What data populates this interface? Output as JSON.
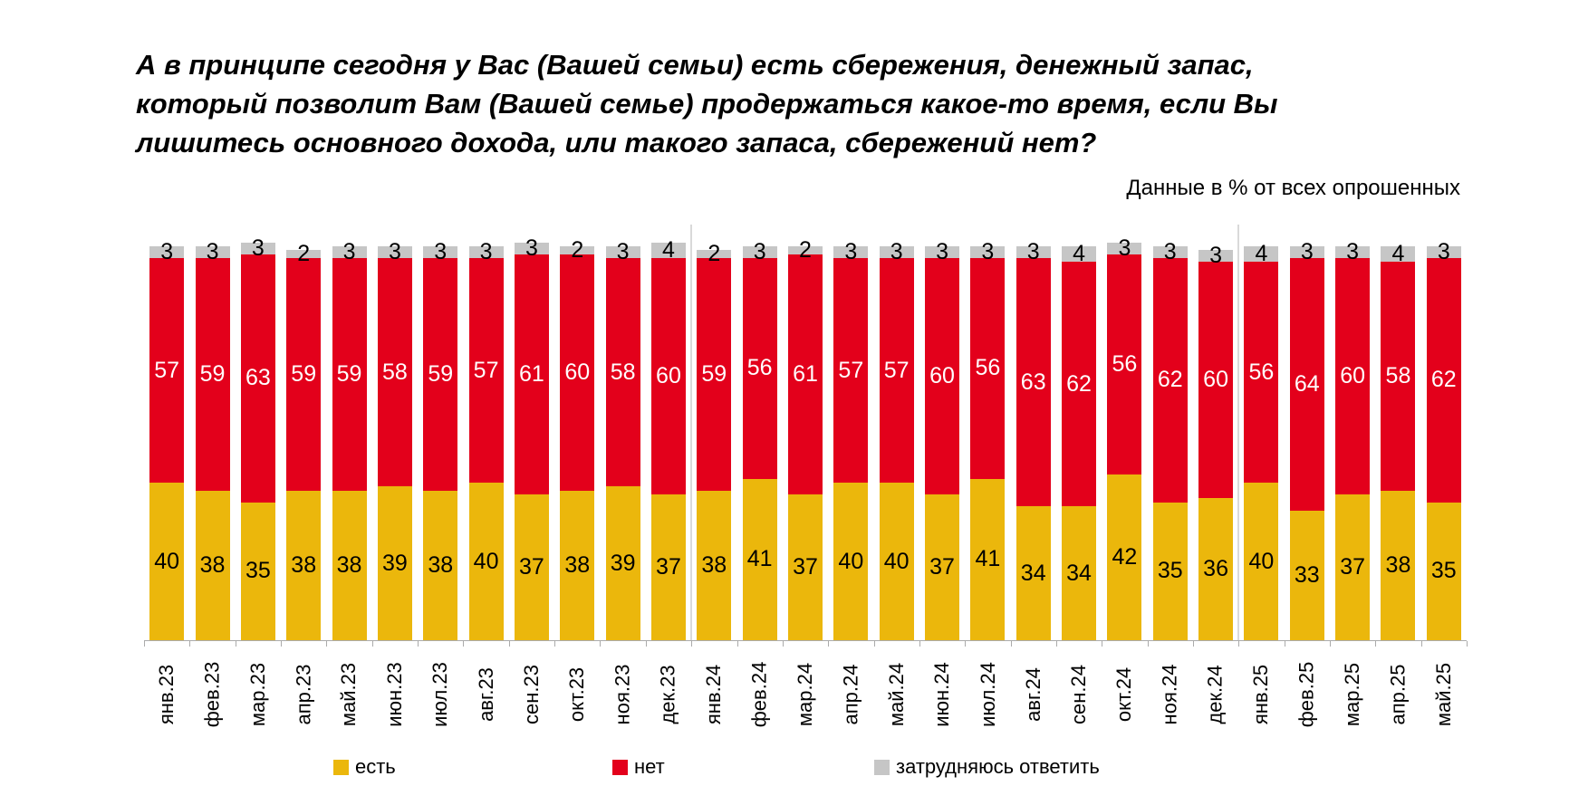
{
  "header": {
    "title": "А в принципе сегодня у Вас (Вашей семьи) есть сбережения, денежный запас,\nкоторый позволит Вам (Вашей семье) продержаться какое-то время, если Вы\nлишитесь основного дохода, или такого запаса, сбережений нет?",
    "subtitle": "Данные в % от всех опрошенных"
  },
  "chart_data": {
    "type": "bar",
    "stacked": true,
    "unit": "% от всех опрошенных",
    "title": "А в принципе сегодня у Вас (Вашей семьи) есть сбережения, денежный запас, который позволит Вам (Вашей семье) продержаться какое-то время, если Вы лишитесь основного дохода, или такого запаса, сбережений нет?",
    "categories": [
      "янв.23",
      "фев.23",
      "мар.23",
      "апр.23",
      "май.23",
      "июн.23",
      "июл.23",
      "авг.23",
      "сен.23",
      "окт.23",
      "ноя.23",
      "дек.23",
      "янв.24",
      "фев.24",
      "мар.24",
      "апр.24",
      "май.24",
      "июн.24",
      "июл.24",
      "авг.24",
      "сен.24",
      "окт.24",
      "ноя.24",
      "дек.24",
      "янв.25",
      "фев.25",
      "мар.25",
      "апр.25",
      "май.25"
    ],
    "series": [
      {
        "name": "есть",
        "color": "#ebb70c",
        "label_color": "#000000",
        "values": [
          40,
          38,
          35,
          38,
          38,
          39,
          38,
          40,
          37,
          38,
          39,
          37,
          38,
          41,
          37,
          40,
          40,
          37,
          41,
          34,
          34,
          42,
          35,
          36,
          40,
          33,
          37,
          38,
          35
        ]
      },
      {
        "name": "нет",
        "color": "#e3001b",
        "label_color": "#ffffff",
        "values": [
          57,
          59,
          63,
          59,
          59,
          58,
          59,
          57,
          61,
          60,
          58,
          60,
          59,
          56,
          61,
          57,
          57,
          60,
          56,
          63,
          62,
          56,
          62,
          60,
          56,
          64,
          60,
          58,
          62
        ]
      },
      {
        "name": "затрудняюсь ответить",
        "color": "#c6c6c6",
        "label_color": "#000000",
        "values": [
          3,
          3,
          3,
          2,
          3,
          3,
          3,
          3,
          3,
          2,
          3,
          4,
          2,
          3,
          2,
          3,
          3,
          3,
          3,
          3,
          4,
          3,
          3,
          3,
          4,
          3,
          3,
          4,
          3
        ]
      }
    ],
    "ylim": [
      0,
      100
    ],
    "value_labels": true,
    "grid": false,
    "legend_position": "bottom",
    "year_separators_after": [
      "дек.23",
      "дек.24"
    ],
    "axis_color": "#ababab",
    "separator_color": "#d9d9d9"
  }
}
